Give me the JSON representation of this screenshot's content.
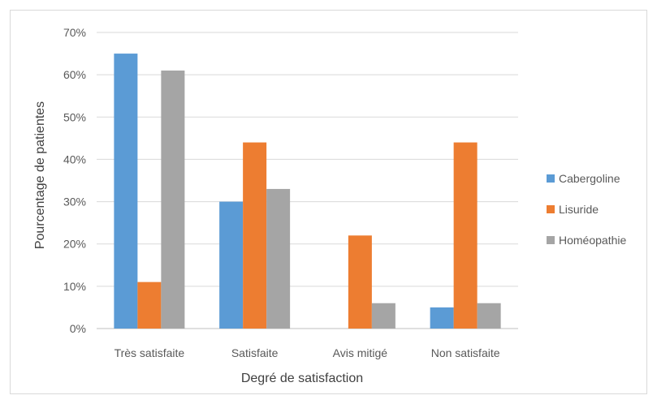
{
  "chart_data": {
    "type": "bar",
    "categories": [
      "Très satisfaite",
      "Satisfaite",
      "Avis mitigé",
      "Non satisfaite"
    ],
    "series": [
      {
        "name": "Cabergoline",
        "color": "#5B9BD5",
        "values": [
          65,
          30,
          0,
          5
        ]
      },
      {
        "name": "Lisuride",
        "color": "#ED7D31",
        "values": [
          11,
          44,
          22,
          44
        ]
      },
      {
        "name": "Homéopathie",
        "color": "#A5A5A5",
        "values": [
          61,
          33,
          6,
          6
        ]
      }
    ],
    "xlabel": "Degré de satisfaction",
    "ylabel": "Pourcentage de patientes",
    "ylim": [
      0,
      70
    ],
    "yticks": [
      "0%",
      "10%",
      "20%",
      "30%",
      "40%",
      "50%",
      "60%",
      "70%"
    ],
    "grid": true,
    "legend_position": "right"
  }
}
